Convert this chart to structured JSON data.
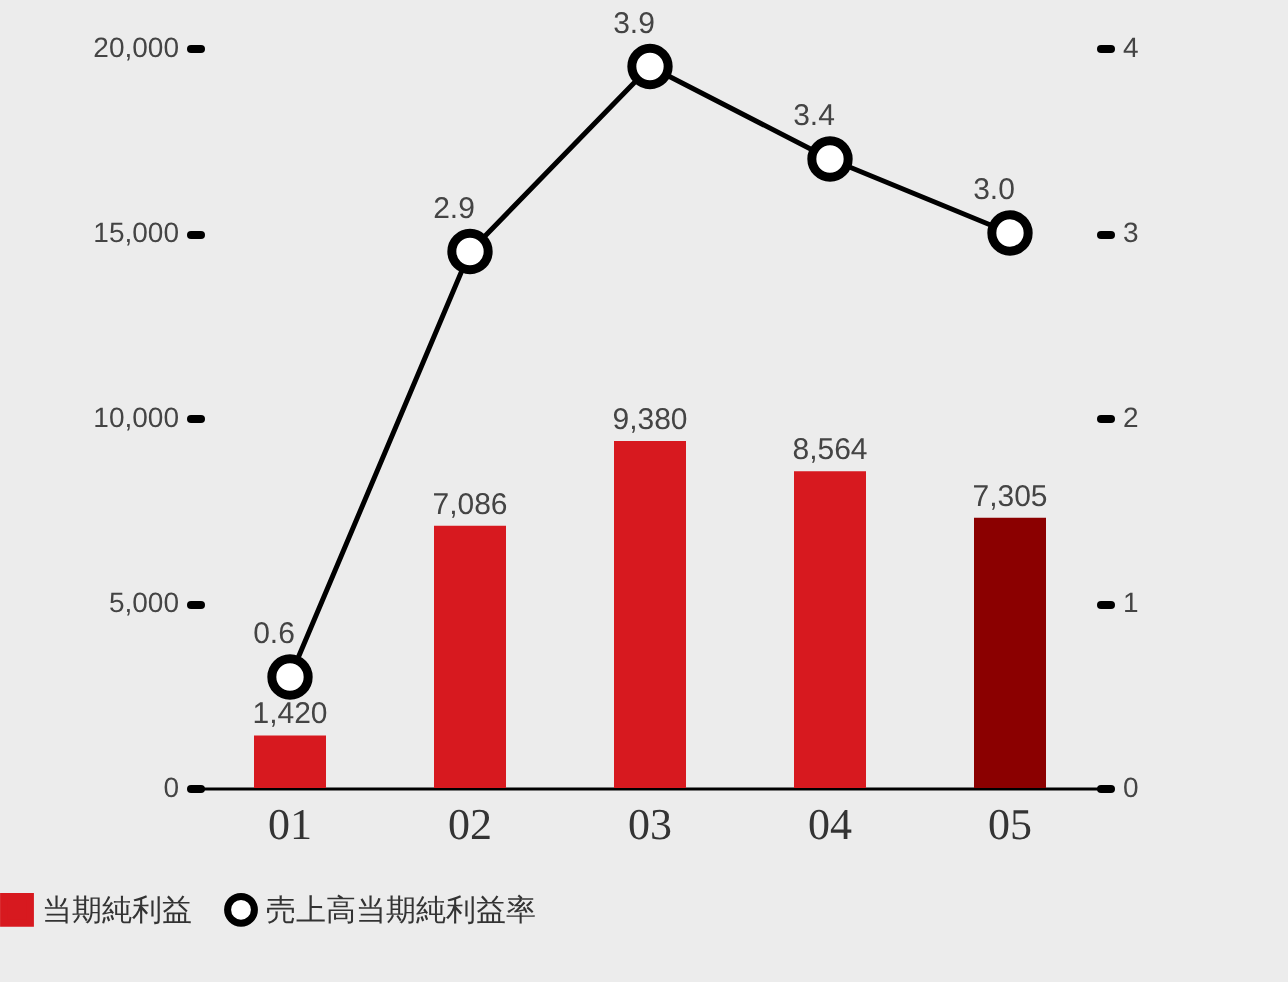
{
  "chart_data": {
    "type": "bar",
    "categories": [
      "01",
      "02",
      "03",
      "04",
      "05"
    ],
    "series": [
      {
        "name": "当期純利益",
        "color": "#d7191f",
        "colors": [
          "#d7191f",
          "#d7191f",
          "#d7191f",
          "#d7191f",
          "#8b0000"
        ],
        "values": [
          1420,
          7086,
          9380,
          8564,
          7305
        ],
        "value_labels": [
          "1,420",
          "7,086",
          "9,380",
          "8,564",
          "7,305"
        ]
      },
      {
        "name": "売上高当期純利益率",
        "type": "line",
        "axis": "y2",
        "color": "#000000",
        "marker": "circle",
        "values": [
          0.6,
          2.9,
          3.9,
          3.4,
          3.0
        ],
        "value_labels": [
          "0.6",
          "2.9",
          "3.9",
          "3.4",
          "3.0"
        ]
      }
    ],
    "ylim": [
      0,
      20000
    ],
    "yticks": [
      0,
      {
        "value": 5000,
        "label": "5,000"
      },
      {
        "value": 10000,
        "label": "10,000"
      },
      {
        "value": 15000,
        "label": "15,000"
      },
      {
        "value": 20000,
        "label": "20,000"
      }
    ],
    "y2lim": [
      0,
      4
    ],
    "y2ticks": [
      0,
      1,
      2,
      3,
      4
    ],
    "grid": false,
    "legend": "bottom left"
  }
}
